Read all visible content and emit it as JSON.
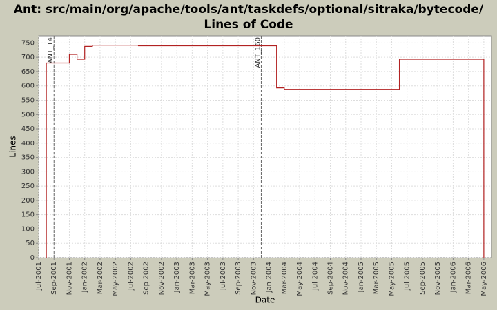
{
  "chart_data": {
    "type": "step-line",
    "title": "Ant: src/main/org/apache/tools/ant/taskdefs/optional/sitraka/bytecode/ Lines of Code",
    "x_label": "Date",
    "y_label": "Lines",
    "x": [
      "2001-08",
      "2001-11",
      "2001-12",
      "2002-01",
      "2002-02",
      "2002-08",
      "2004-02",
      "2004-03",
      "2005-06",
      "2006-05"
    ],
    "series": [
      {
        "name": "Lines of Code",
        "color": "#b22222",
        "values": [
          680,
          710,
          693,
          738,
          742,
          740,
          593,
          588,
          693,
          0
        ]
      }
    ],
    "markers": [
      {
        "x": "2001-09",
        "label": "ANT_14"
      },
      {
        "x": "2003-12",
        "label": "ANT_160"
      }
    ],
    "xlim": [
      "2001-07",
      "2006-06"
    ],
    "xticks": [
      {
        "value": "2001-07",
        "label": "Jul-2001"
      },
      {
        "value": "2001-09",
        "label": "Sep-2001"
      },
      {
        "value": "2001-11",
        "label": "Nov-2001"
      },
      {
        "value": "2002-01",
        "label": "Jan-2002"
      },
      {
        "value": "2002-03",
        "label": "Mar-2002"
      },
      {
        "value": "2002-05",
        "label": "May-2002"
      },
      {
        "value": "2002-07",
        "label": "Jul-2002"
      },
      {
        "value": "2002-09",
        "label": "Sep-2002"
      },
      {
        "value": "2002-11",
        "label": "Nov-2002"
      },
      {
        "value": "2003-01",
        "label": "Jan-2003"
      },
      {
        "value": "2003-03",
        "label": "Mar-2003"
      },
      {
        "value": "2003-05",
        "label": "May-2003"
      },
      {
        "value": "2003-07",
        "label": "Jul-2003"
      },
      {
        "value": "2003-09",
        "label": "Sep-2003"
      },
      {
        "value": "2003-11",
        "label": "Nov-2003"
      },
      {
        "value": "2004-01",
        "label": "Jan-2004"
      },
      {
        "value": "2004-03",
        "label": "Mar-2004"
      },
      {
        "value": "2004-05",
        "label": "May-2004"
      },
      {
        "value": "2004-07",
        "label": "Jul-2004"
      },
      {
        "value": "2004-09",
        "label": "Sep-2004"
      },
      {
        "value": "2004-11",
        "label": "Nov-2004"
      },
      {
        "value": "2005-01",
        "label": "Jan-2005"
      },
      {
        "value": "2005-03",
        "label": "Mar-2005"
      },
      {
        "value": "2005-05",
        "label": "May-2005"
      },
      {
        "value": "2005-07",
        "label": "Jul-2005"
      },
      {
        "value": "2005-09",
        "label": "Sep-2005"
      },
      {
        "value": "2005-11",
        "label": "Nov-2005"
      },
      {
        "value": "2006-01",
        "label": "Jan-2006"
      },
      {
        "value": "2006-03",
        "label": "Mar-2006"
      },
      {
        "value": "2006-05",
        "label": "May-2006"
      }
    ],
    "ylim": [
      0,
      775
    ],
    "yticks": [
      0,
      50,
      100,
      150,
      200,
      250,
      300,
      350,
      400,
      450,
      500,
      550,
      600,
      650,
      700,
      750
    ],
    "grid": true
  }
}
